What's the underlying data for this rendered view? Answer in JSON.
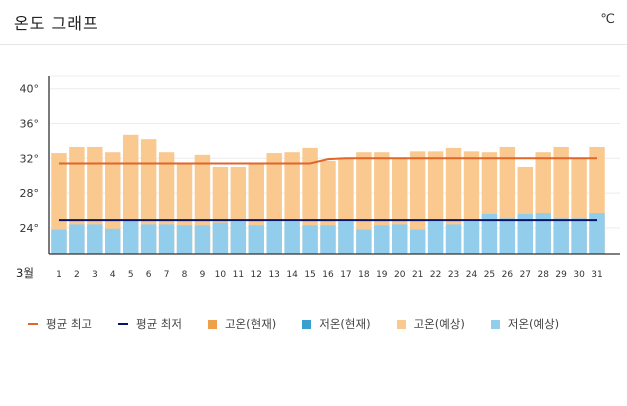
{
  "header": {
    "title": "온도 그래프",
    "unit": "℃"
  },
  "colors": {
    "avg_high": "#e0662a",
    "avg_low": "#0a1466",
    "high_current": "#f0a04a",
    "low_current": "#3aa0d0",
    "high_forecast": "#f9c98f",
    "low_forecast": "#93cdec",
    "grid": "#ececec",
    "axis": "#333333"
  },
  "legend": [
    {
      "label": "평균 최고",
      "kind": "line",
      "color_key": "avg_high"
    },
    {
      "label": "평균 최저",
      "kind": "line",
      "color_key": "avg_low"
    },
    {
      "label": "고온(현재)",
      "kind": "box",
      "color_key": "high_current"
    },
    {
      "label": "저온(현재)",
      "kind": "box",
      "color_key": "low_current"
    },
    {
      "label": "고온(예상)",
      "kind": "box",
      "color_key": "high_forecast"
    },
    {
      "label": "저온(예상)",
      "kind": "box",
      "color_key": "low_forecast"
    }
  ],
  "chart_data": {
    "type": "bar",
    "title": "",
    "xlabel": "3월",
    "ylabel": "",
    "ylim": [
      21,
      41
    ],
    "y_ticks": [
      24,
      28,
      32,
      36,
      40
    ],
    "y_tick_labels": [
      "24°",
      "28°",
      "32°",
      "36°",
      "40°"
    ],
    "grid": true,
    "legend_position": "bottom",
    "categories": [
      "1",
      "2",
      "3",
      "4",
      "5",
      "6",
      "7",
      "8",
      "9",
      "10",
      "11",
      "12",
      "13",
      "14",
      "15",
      "16",
      "17",
      "18",
      "19",
      "20",
      "21",
      "22",
      "23",
      "24",
      "25",
      "26",
      "27",
      "28",
      "29",
      "30",
      "31"
    ],
    "series": [
      {
        "name": "고온(예상)",
        "values": [
          32.6,
          33.3,
          33.3,
          32.7,
          34.7,
          34.2,
          32.7,
          31.3,
          32.4,
          31.0,
          31.0,
          31.4,
          32.6,
          32.7,
          33.2,
          31.7,
          32.1,
          32.7,
          32.7,
          32.1,
          32.8,
          32.8,
          33.2,
          32.8,
          32.7,
          33.3,
          31.0,
          32.7,
          33.3,
          32.1,
          33.3
        ]
      },
      {
        "name": "저온(예상)",
        "values": [
          23.8,
          24.4,
          24.4,
          23.9,
          24.8,
          24.4,
          24.4,
          24.3,
          24.3,
          24.6,
          24.7,
          24.3,
          24.7,
          24.7,
          24.3,
          24.3,
          24.7,
          23.8,
          24.3,
          24.4,
          23.8,
          24.7,
          24.4,
          24.7,
          25.6,
          25.1,
          25.6,
          25.7,
          25.1,
          25.1,
          25.7
        ]
      },
      {
        "name": "평균 최고",
        "values": [
          31.4,
          31.4,
          31.4,
          31.4,
          31.4,
          31.4,
          31.4,
          31.4,
          31.4,
          31.4,
          31.4,
          31.4,
          31.4,
          31.4,
          31.4,
          31.9,
          32.0,
          32.0,
          32.0,
          32.0,
          32.0,
          32.0,
          32.0,
          32.0,
          32.0,
          32.0,
          32.0,
          32.0,
          32.0,
          32.0,
          32.0
        ]
      },
      {
        "name": "평균 최저",
        "values": [
          24.9,
          24.9,
          24.9,
          24.9,
          24.9,
          24.9,
          24.9,
          24.9,
          24.9,
          24.9,
          24.9,
          24.9,
          24.9,
          24.9,
          24.9,
          24.9,
          24.9,
          24.9,
          24.9,
          24.9,
          24.9,
          24.9,
          24.9,
          24.9,
          24.9,
          24.9,
          24.9,
          24.9,
          24.9,
          24.9,
          24.9
        ]
      }
    ]
  }
}
